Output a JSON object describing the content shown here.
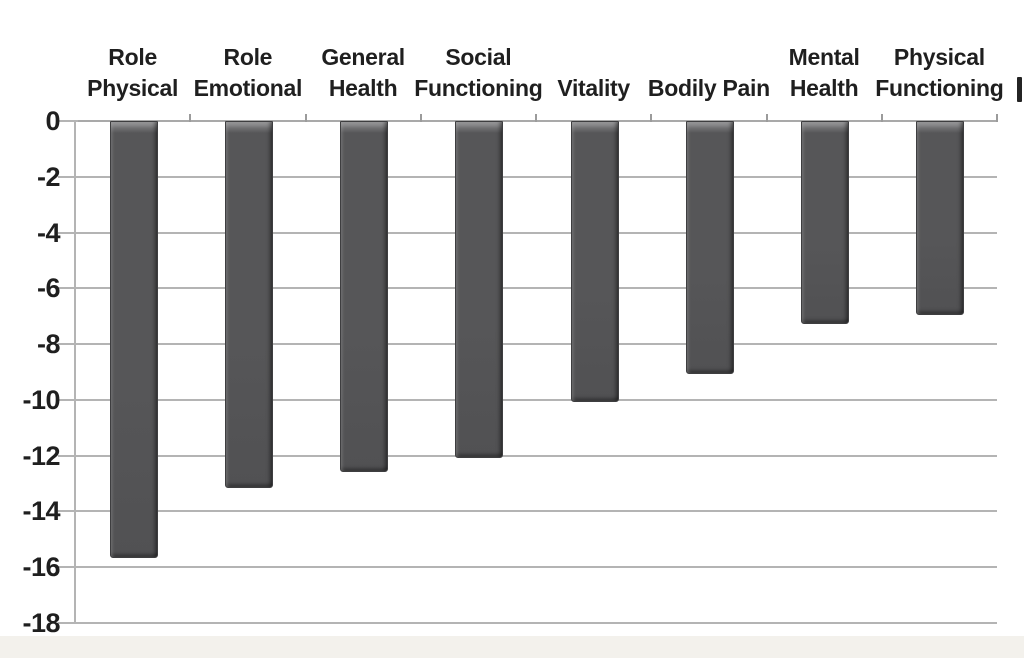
{
  "chart_data": {
    "type": "bar",
    "categories": [
      "Role\nPhysical",
      "Role\nEmotional",
      "General\nHealth",
      "Social\nFunctioning",
      "Vitality",
      "Bodily Pain",
      "Mental\nHealth",
      "Physical\nFunctioning"
    ],
    "values": [
      -15.6,
      -13.1,
      -12.5,
      -12.0,
      -10.0,
      -9.0,
      -7.2,
      -6.9
    ],
    "title": "",
    "xlabel": "",
    "ylabel": "",
    "ylim": [
      -18,
      0
    ],
    "yticks": [
      0,
      -2,
      -4,
      -6,
      -8,
      -10,
      -12,
      -14,
      -16,
      -18
    ],
    "ytick_labels": [
      "0",
      "-2",
      "-4",
      "-6",
      "-8",
      "-10",
      "-12",
      "-14",
      "-16",
      "-18"
    ],
    "grid": true,
    "legend": "none",
    "colors": {
      "bar_body": "#565658",
      "bar_top_highlight": "#a2a2a4",
      "bar_edge": "#3e3e40",
      "gridline": "#b4b4b4",
      "zero_axis": "#a9a9a9",
      "tick": "#9b9b9b",
      "text": "#1f1f1f",
      "background": "#ffffff",
      "footer_strip": "#f3f1ec"
    }
  }
}
